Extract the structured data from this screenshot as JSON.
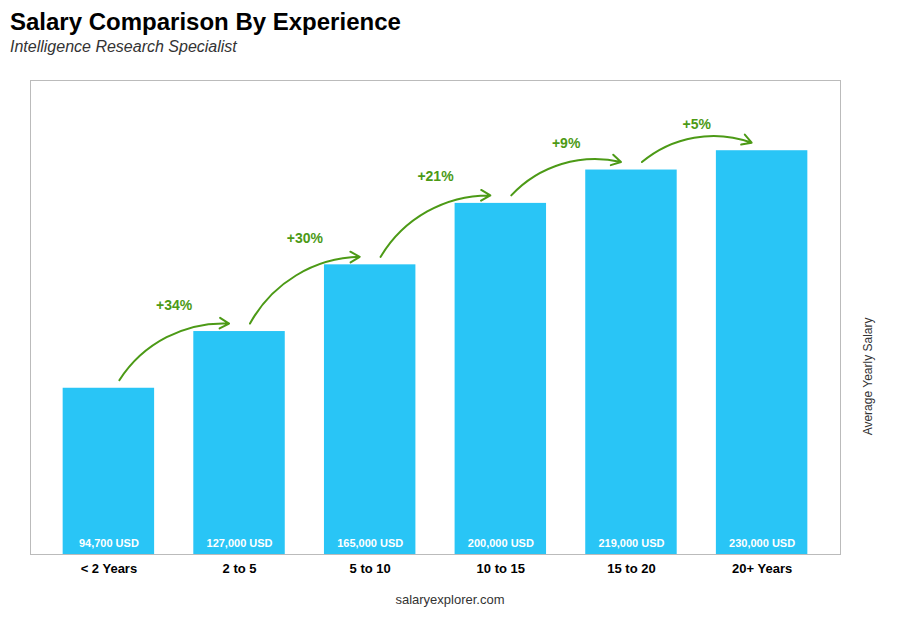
{
  "chart_data": {
    "type": "bar",
    "title": "Salary Comparison By Experience",
    "subtitle": "Intelligence Research Specialist",
    "categories": [
      "< 2 Years",
      "2 to 5",
      "5 to 10",
      "10 to 15",
      "15 to 20",
      "20+ Years"
    ],
    "values": [
      94700,
      127000,
      165000,
      200000,
      219000,
      230000
    ],
    "value_labels": [
      "94,700 USD",
      "127,000 USD",
      "165,000 USD",
      "200,000 USD",
      "219,000 USD",
      "230,000 USD"
    ],
    "data_labels": true,
    "color": "#29c5f6",
    "ylabel": "Average Yearly Salary",
    "ylim": [
      0,
      270000
    ],
    "tick_labels": "x",
    "grid": false,
    "annotations": [
      "+34%",
      "+30%",
      "+21%",
      "+9%",
      "+5%"
    ],
    "footer": "salaryexplorer.com"
  }
}
